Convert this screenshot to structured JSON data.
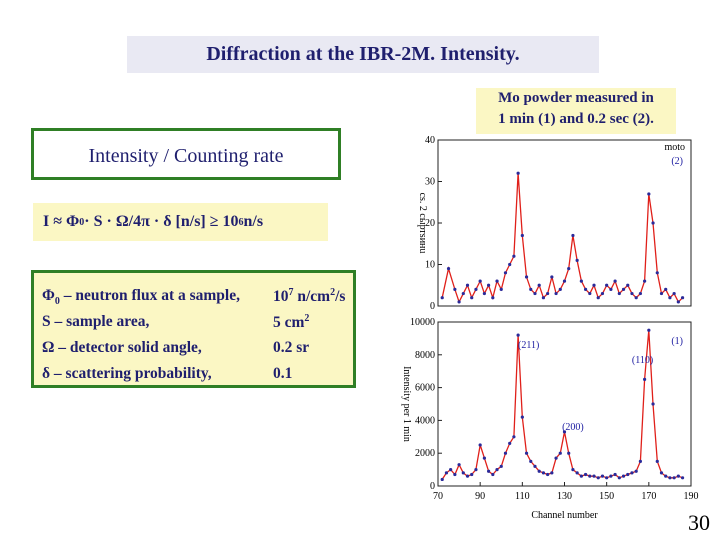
{
  "title": "Diffraction at the IBR-2M. Intensity.",
  "mo_note": {
    "line1": "Mo powder measured in",
    "line2": "1 min (1) and 0.2 sec (2)."
  },
  "intensity_heading": "Intensity / Counting rate",
  "formula": {
    "left": "I ≈ Φ",
    "sub0": "0",
    "mid": " · S · Ω/4π · δ [n/s] ≥ 10",
    "exp": "6",
    "unit": " n/s"
  },
  "definitions": [
    {
      "label_main": "Φ",
      "label_sub": "0",
      "label_rest": " – neutron flux at a sample,",
      "value_main": "10",
      "value_sup": "7",
      "value_rest": " n/cm",
      "value_sup2": "2",
      "value_end": "/s"
    },
    {
      "label_main": "S – sample area,",
      "label_sub": "",
      "label_rest": "",
      "value_main": "5 cm",
      "value_sup": "2",
      "value_rest": "",
      "value_sup2": "",
      "value_end": ""
    },
    {
      "label_main": "Ω – detector solid angle,",
      "label_sub": "",
      "label_rest": "",
      "value_main": "0.2 sr",
      "value_sup": "",
      "value_rest": "",
      "value_sup2": "",
      "value_end": ""
    },
    {
      "label_main": "δ – scattering probability,",
      "label_sub": "",
      "label_rest": "",
      "value_main": "0.1",
      "value_sup": "",
      "value_rest": "",
      "value_sup2": "",
      "value_end": ""
    }
  ],
  "page_number": "30",
  "chart_data": [
    {
      "type": "line",
      "panel_label": "(2)",
      "corner_note": "moto",
      "ylabel": "сs. 2 сыртsинu",
      "ylim": [
        0,
        40
      ],
      "yticks": [
        "0",
        "10",
        "20",
        "30",
        "40"
      ],
      "xlim": [
        70,
        190
      ],
      "x": [
        72,
        75,
        78,
        80,
        82,
        84,
        86,
        88,
        90,
        92,
        94,
        96,
        98,
        100,
        102,
        104,
        106,
        108,
        110,
        112,
        114,
        116,
        118,
        120,
        122,
        124,
        126,
        128,
        130,
        132,
        134,
        136,
        138,
        140,
        142,
        144,
        146,
        148,
        150,
        152,
        154,
        156,
        158,
        160,
        162,
        164,
        166,
        168,
        170,
        172,
        174,
        176,
        178,
        180,
        182,
        184,
        186
      ],
      "values": [
        2,
        9,
        4,
        1,
        3,
        5,
        2,
        4,
        6,
        3,
        5,
        2,
        6,
        4,
        8,
        10,
        12,
        32,
        17,
        7,
        4,
        3,
        5,
        2,
        3,
        7,
        3,
        4,
        6,
        9,
        17,
        11,
        6,
        4,
        3,
        5,
        2,
        3,
        5,
        4,
        6,
        3,
        4,
        5,
        3,
        2,
        3,
        6,
        27,
        20,
        8,
        3,
        4,
        2,
        3,
        1,
        2
      ]
    },
    {
      "type": "line",
      "panel_label": "(1)",
      "xlabel": "Channel number",
      "ylabel": "Intensity per 1 min",
      "ylim": [
        0,
        10000
      ],
      "yticks": [
        "0",
        "2000",
        "4000",
        "6000",
        "8000",
        "10000"
      ],
      "xlim": [
        70,
        190
      ],
      "xticks": [
        "70",
        "90",
        "110",
        "130",
        "150",
        "170",
        "190"
      ],
      "annotations": [
        {
          "text": "(211)",
          "x": 113,
          "y": 8400
        },
        {
          "text": "(110)",
          "x": 167,
          "y": 7500
        },
        {
          "text": "(200)",
          "x": 134,
          "y": 3400
        }
      ],
      "x": [
        72,
        74,
        76,
        78,
        80,
        82,
        84,
        86,
        88,
        90,
        92,
        94,
        96,
        98,
        100,
        102,
        104,
        106,
        108,
        110,
        112,
        114,
        116,
        118,
        120,
        122,
        124,
        126,
        128,
        130,
        132,
        134,
        136,
        138,
        140,
        142,
        144,
        146,
        148,
        150,
        152,
        154,
        156,
        158,
        160,
        162,
        164,
        166,
        168,
        170,
        172,
        174,
        176,
        178,
        180,
        182,
        184,
        186
      ],
      "values": [
        400,
        800,
        1000,
        700,
        1300,
        800,
        600,
        700,
        1000,
        2500,
        1700,
        900,
        700,
        1000,
        1200,
        2000,
        2600,
        3000,
        9200,
        4200,
        2000,
        1500,
        1200,
        900,
        800,
        700,
        800,
        1700,
        2000,
        3300,
        2000,
        1000,
        800,
        600,
        700,
        600,
        600,
        500,
        600,
        500,
        600,
        700,
        500,
        600,
        700,
        800,
        900,
        1500,
        6500,
        9500,
        5000,
        1500,
        800,
        600,
        500,
        500,
        600,
        500
      ]
    }
  ]
}
